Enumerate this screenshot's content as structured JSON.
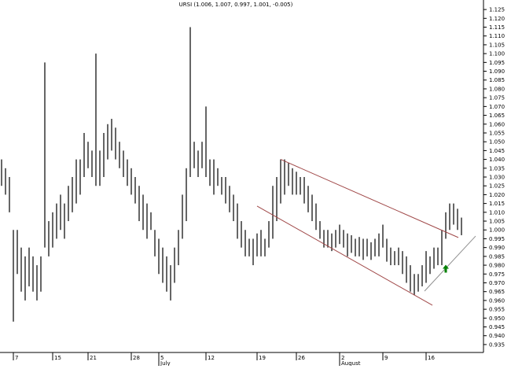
{
  "chart_data": {
    "type": "range_bar",
    "title": "URSI (1.006, 1.007, 0.997, 1.001, -0.005)",
    "color": "#000000",
    "low": [
      1.025,
      1.02,
      1.01,
      0.948,
      0.975,
      0.965,
      0.96,
      0.968,
      0.965,
      0.96,
      0.965,
      0.99,
      0.985,
      0.99,
      0.995,
      1.0,
      0.995,
      1.005,
      1.01,
      1.015,
      1.02,
      1.03,
      1.035,
      1.03,
      1.025,
      1.025,
      1.03,
      1.04,
      1.045,
      1.04,
      1.035,
      1.03,
      1.025,
      1.02,
      1.015,
      1.005,
      1.0,
      0.995,
      1.0,
      0.985,
      0.975,
      0.97,
      0.965,
      0.96,
      0.97,
      0.98,
      0.995,
      1.005,
      1.03,
      1.035,
      1.03,
      1.035,
      1.03,
      1.025,
      1.02,
      1.025,
      1.02,
      1.015,
      1.01,
      1.005,
      0.995,
      0.99,
      0.985,
      0.985,
      0.98,
      0.985,
      0.985,
      0.985,
      0.99,
      0.995,
      1.005,
      1.015,
      1.02,
      1.025,
      1.02,
      1.02,
      1.02,
      1.015,
      1.01,
      1.005,
      1.0,
      0.995,
      0.99,
      0.99,
      0.988,
      0.99,
      0.992,
      0.99,
      0.985,
      0.987,
      0.985,
      0.985,
      0.983,
      0.985,
      0.983,
      0.985,
      0.985,
      0.99,
      0.982,
      0.98,
      0.98,
      0.98,
      0.975,
      0.97,
      0.965,
      0.963,
      0.965,
      0.968,
      0.97,
      0.975,
      0.978,
      0.98,
      0.98,
      0.995,
      1.0,
      1.003,
      1.0,
      0.997
    ],
    "high": [
      1.04,
      1.035,
      1.03,
      1.0,
      1.0,
      0.99,
      0.985,
      0.99,
      0.985,
      0.98,
      0.985,
      1.095,
      1.005,
      1.01,
      1.015,
      1.02,
      1.015,
      1.025,
      1.03,
      1.04,
      1.04,
      1.055,
      1.05,
      1.045,
      1.1,
      1.045,
      1.055,
      1.06,
      1.063,
      1.058,
      1.05,
      1.045,
      1.04,
      1.035,
      1.03,
      1.025,
      1.02,
      1.015,
      1.01,
      1.0,
      0.995,
      0.99,
      0.985,
      0.98,
      0.99,
      1.0,
      1.02,
      1.035,
      1.115,
      1.05,
      1.045,
      1.05,
      1.07,
      1.04,
      1.04,
      1.035,
      1.03,
      1.03,
      1.025,
      1.02,
      1.015,
      1.005,
      1.0,
      0.995,
      0.995,
      0.998,
      1.0,
      0.995,
      1.005,
      1.025,
      1.03,
      1.04,
      1.04,
      1.038,
      1.035,
      1.033,
      1.03,
      1.03,
      1.025,
      1.02,
      1.015,
      1.005,
      1.0,
      1.0,
      0.998,
      1.0,
      1.003,
      1.0,
      0.998,
      0.997,
      0.995,
      0.996,
      0.995,
      0.995,
      0.993,
      0.995,
      0.998,
      1.003,
      0.995,
      0.99,
      0.988,
      0.99,
      0.988,
      0.985,
      0.98,
      0.975,
      0.975,
      0.98,
      0.988,
      0.985,
      0.99,
      0.99,
      1.0,
      1.01,
      1.015,
      1.015,
      1.012,
      1.007
    ],
    "xlim": [
      -0.4,
      122.6
    ],
    "ylim": [
      0.9305,
      1.1304
    ],
    "xticks": [
      {
        "value": 3,
        "label": "7"
      },
      {
        "value": 13,
        "label": "15"
      },
      {
        "value": 22,
        "label": "21"
      },
      {
        "value": 33,
        "label": "28"
      },
      {
        "value": 40,
        "label": "5"
      },
      {
        "value": 52,
        "label": "12"
      },
      {
        "value": 65,
        "label": "19"
      },
      {
        "value": 75,
        "label": "26"
      },
      {
        "value": 86,
        "label": "2"
      },
      {
        "value": 97,
        "label": "9"
      },
      {
        "value": 108,
        "label": "16"
      }
    ],
    "month_labels": [
      {
        "value": 40,
        "label": "July"
      },
      {
        "value": 86,
        "label": "August"
      }
    ],
    "yticks": [
      0.935,
      {
        "value": 0.94,
        "label": "0.940"
      },
      0.945,
      {
        "value": 0.95,
        "label": "0.950"
      },
      0.955,
      {
        "value": 0.96,
        "label": "0.960"
      },
      0.965,
      {
        "value": 0.97,
        "label": "0.970"
      },
      0.975,
      {
        "value": 0.98,
        "label": "0.980"
      },
      0.985,
      {
        "value": 0.99,
        "label": "0.990"
      },
      0.995,
      {
        "value": 1,
        "label": "1.000"
      },
      1.005,
      {
        "value": 1.01,
        "label": "1.010"
      },
      1.015,
      {
        "value": 1.02,
        "label": "1.020"
      },
      1.025,
      {
        "value": 1.03,
        "label": "1.030"
      },
      1.035,
      {
        "value": 1.04,
        "label": "1.040"
      },
      1.045,
      {
        "value": 1.05,
        "label": "1.050"
      },
      1.055,
      {
        "value": 1.06,
        "label": "1.060"
      },
      1.065,
      {
        "value": 1.07,
        "label": "1.070"
      },
      1.075,
      {
        "value": 1.08,
        "label": "1.080"
      },
      1.085,
      {
        "value": 1.09,
        "label": "1.090"
      },
      1.095,
      {
        "value": 1.1,
        "label": "1.100"
      },
      1.105,
      {
        "value": 1.11,
        "label": "1.110"
      },
      1.115,
      {
        "value": 1.12,
        "label": "1.120"
      },
      1.125
    ],
    "trendlines": [
      {
        "x": [
          71,
          116.2
        ],
        "y": [
          1.04,
          0.9957
        ],
        "color": "#a04848"
      },
      {
        "x": [
          65,
          109.6
        ],
        "y": [
          1.0135,
          0.9573
        ],
        "color": "#a04848"
      },
      {
        "x": [
          107.6,
          120.6
        ],
        "y": [
          0.9653,
          0.9965
        ],
        "color": "#909090"
      }
    ],
    "arrow": {
      "x": 113,
      "y": 0.978,
      "color": "#008000"
    }
  }
}
